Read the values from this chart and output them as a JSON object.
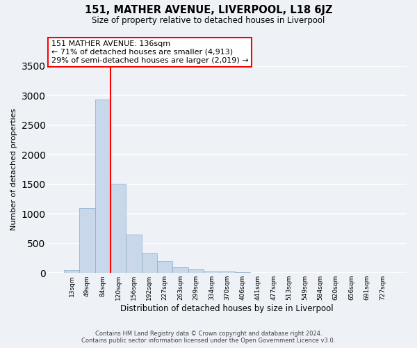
{
  "title": "151, MATHER AVENUE, LIVERPOOL, L18 6JZ",
  "subtitle": "Size of property relative to detached houses in Liverpool",
  "xlabel": "Distribution of detached houses by size in Liverpool",
  "ylabel": "Number of detached properties",
  "bar_labels": [
    "13sqm",
    "49sqm",
    "84sqm",
    "120sqm",
    "156sqm",
    "192sqm",
    "227sqm",
    "263sqm",
    "299sqm",
    "334sqm",
    "370sqm",
    "406sqm",
    "441sqm",
    "477sqm",
    "513sqm",
    "549sqm",
    "584sqm",
    "620sqm",
    "656sqm",
    "691sqm",
    "727sqm"
  ],
  "bar_values": [
    50,
    1100,
    2930,
    1510,
    645,
    330,
    200,
    95,
    65,
    30,
    25,
    10,
    5,
    0,
    0,
    0,
    0,
    0,
    0,
    0,
    0
  ],
  "bar_color": "#c8d8ea",
  "bar_edge_color": "#8aaac8",
  "vline_color": "red",
  "annotation_text": "151 MATHER AVENUE: 136sqm\n← 71% of detached houses are smaller (4,913)\n29% of semi-detached houses are larger (2,019) →",
  "annotation_box_color": "white",
  "annotation_box_edge": "red",
  "ylim": [
    0,
    3500
  ],
  "yticks": [
    0,
    500,
    1000,
    1500,
    2000,
    2500,
    3000,
    3500
  ],
  "footer_line1": "Contains HM Land Registry data © Crown copyright and database right 2024.",
  "footer_line2": "Contains public sector information licensed under the Open Government Licence v3.0.",
  "background_color": "#eef2f7",
  "grid_color": "#ffffff",
  "title_fontsize": 10.5,
  "subtitle_fontsize": 8.5,
  "xlabel_fontsize": 8.5,
  "ylabel_fontsize": 8.0,
  "tick_fontsize": 6.5,
  "annotation_fontsize": 8.0,
  "footer_fontsize": 6.0
}
